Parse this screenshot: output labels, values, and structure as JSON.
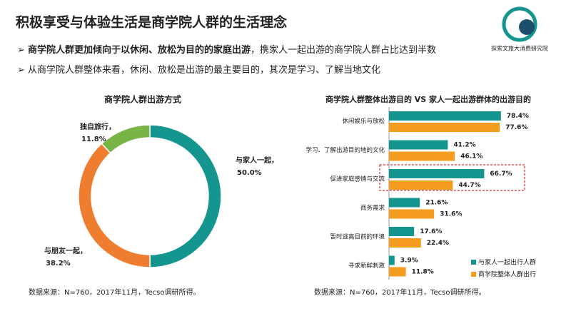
{
  "title": "积极享受与体验生活是商学院人群的生活理念",
  "logo_text": "探索文旅大消费研究院",
  "bullets": [
    {
      "bold": "商学院人群更加倾向于以休闲、放松为目的的家庭出游",
      "text": "，携家人一起出游的商学院人群占比达到半数"
    },
    {
      "text": "从商学院人群整体来看，休闲、放松是出游的最主要目的，其次是学习、了解当地文化"
    }
  ],
  "chart_data": [
    {
      "type": "donut",
      "title": "商学院人群出游方式",
      "categories": [
        "与家人一起，",
        "与朋友一起，",
        "独自旅行，"
      ],
      "values": [
        50,
        38.2,
        11.8
      ],
      "value_labels": [
        "50.0%",
        "38.2%",
        "11.8%"
      ],
      "colors": [
        "#15958f",
        "#ef7d2f",
        "#79b446"
      ],
      "source": "数据来源：N=760，2017年11月，Tecso调研所得。"
    },
    {
      "type": "hbar",
      "title": "商学院人群整体出游目的 VS 家人一起出游群体的出游目的",
      "categories": [
        "休闲娱乐与放松",
        "学习、了解出游目的地的文化",
        "促进家庭感情与交流",
        "商务需求",
        "暂时逃离目前的环境",
        "寻求新鲜刺激"
      ],
      "series": [
        {
          "name": "与家人一起出行人群",
          "color": "#15958f",
          "values": [
            78.4,
            41.2,
            66.7,
            21.6,
            17.6,
            3.9
          ],
          "value_labels": [
            "78.4%",
            "41.2%",
            "66.7%",
            "21.6%",
            "17.6%",
            "3.9%"
          ]
        },
        {
          "name": "商学院整体人群出行",
          "color": "#f39c1f",
          "values": [
            77.6,
            46.1,
            44.7,
            31.6,
            22.4,
            11.8
          ],
          "value_labels": [
            "77.6%",
            "46.1%",
            "44.7%",
            "31.6%",
            "22.4%",
            "11.8%"
          ]
        }
      ],
      "source": "数据来源：N=760，2017年11月，Tecso调研所得。"
    }
  ]
}
